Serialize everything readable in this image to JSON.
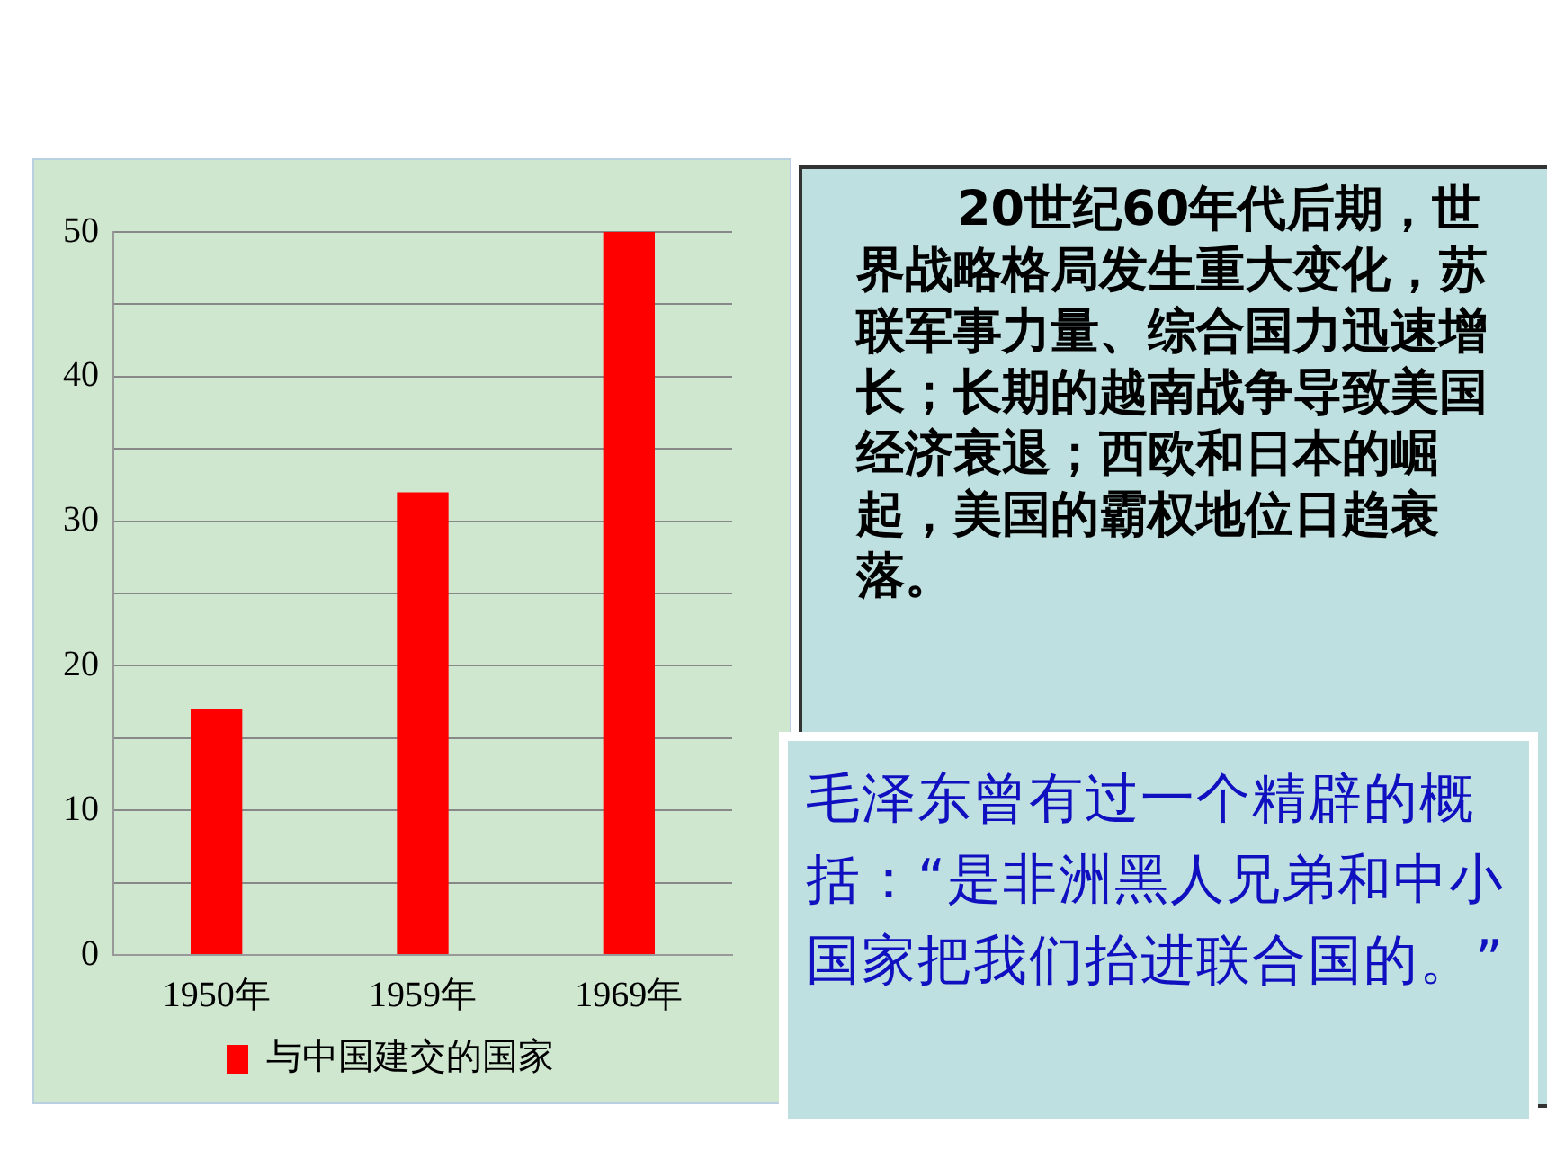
{
  "chart_data": {
    "type": "bar",
    "categories": [
      "1950年",
      "1959年",
      "1969年"
    ],
    "series": [
      {
        "name": "与中国建交的国家",
        "color": "#ff0000",
        "values": [
          17,
          32,
          50
        ]
      }
    ],
    "ylim": [
      0,
      50
    ],
    "yticks": [
      0,
      {
        "value": 5,
        "label": null
      },
      10,
      {
        "value": 15,
        "label": null
      },
      20,
      {
        "value": 25,
        "label": null
      },
      30,
      {
        "value": 35,
        "label": null
      },
      40,
      {
        "value": 45,
        "label": null
      },
      50
    ],
    "grid": "y",
    "legend": "bottom",
    "annotations": [
      "20世纪60年代后期，世界战略格局发生重大变化，苏联军事力量、综合国力迅速增长；长期的越南战争导致美国经济衰退；西欧和日本的崛起，美国的霸权地位日趋衰落。",
      "毛泽东曾有过一个精辟的概括：“是非洲黑人兄弟和中小国家把我们抬进联合国的。”"
    ]
  }
}
